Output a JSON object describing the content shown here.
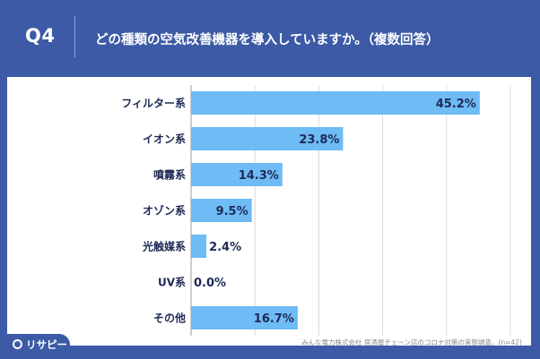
{
  "header": {
    "qnum": "Q4",
    "question": "どの種類の空気改善機器を導入していますか。（複数回答）"
  },
  "colors": {
    "background": "#3c5aa6",
    "bar": "#6ebbf5",
    "label_text": "#1e2a55",
    "grid": "#d9d9d9"
  },
  "chart_data": {
    "type": "bar",
    "orientation": "horizontal",
    "categories": [
      "フィルター系",
      "イオン系",
      "噴霧系",
      "オゾン系",
      "光触媒系",
      "UV系",
      "その他"
    ],
    "values": [
      45.2,
      23.8,
      14.3,
      9.5,
      2.4,
      0.0,
      16.7
    ],
    "value_labels": [
      "45.2%",
      "23.8%",
      "14.3%",
      "9.5%",
      "2.4%",
      "0.0%",
      "16.7%"
    ],
    "xlim": [
      0,
      50
    ],
    "grid": true,
    "legend": "none"
  },
  "footer": {
    "source": "みんな電力株式会社 居酒屋チェーン店のコロナ対策の実態調査。(n=42)",
    "logo_text": "リサピー"
  }
}
